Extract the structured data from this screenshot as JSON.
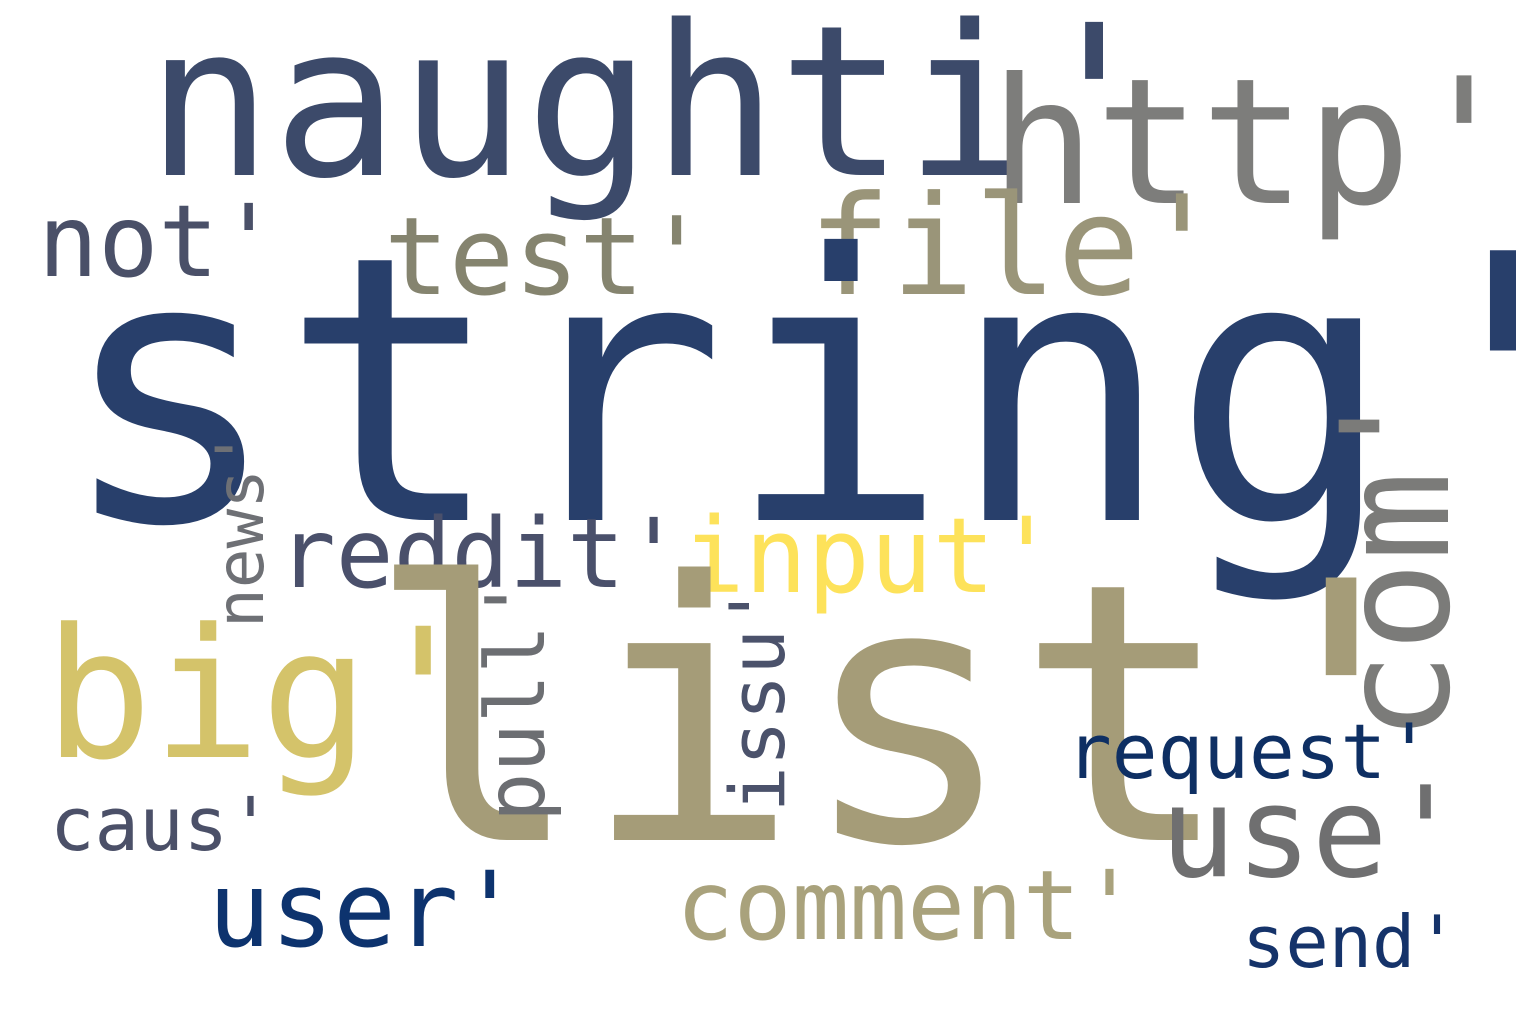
{
  "word_cloud": {
    "background": "#ffffff",
    "words": [
      {
        "key": "string",
        "text": "string'",
        "color": "#283f6b",
        "orientation": "horizontal"
      },
      {
        "key": "list",
        "text": "list'",
        "color": "#a59c78",
        "orientation": "horizontal"
      },
      {
        "key": "naughti",
        "text": "naughti'",
        "color": "#3c4a6a",
        "orientation": "horizontal"
      },
      {
        "key": "http",
        "text": "http'",
        "color": "#7d7d7b",
        "orientation": "horizontal"
      },
      {
        "key": "file",
        "text": "file'",
        "color": "#9a9579",
        "orientation": "horizontal"
      },
      {
        "key": "test",
        "text": "test'",
        "color": "#85846f",
        "orientation": "horizontal"
      },
      {
        "key": "not",
        "text": "not'",
        "color": "#4a5068",
        "orientation": "horizontal"
      },
      {
        "key": "com",
        "text": "com'",
        "color": "#7b7b79",
        "orientation": "vertical"
      },
      {
        "key": "big",
        "text": "big'",
        "color": "#d4c36a",
        "orientation": "horizontal"
      },
      {
        "key": "reddit",
        "text": "reddit'",
        "color": "#4a506b",
        "orientation": "horizontal"
      },
      {
        "key": "input",
        "text": "input'",
        "color": "#fde25a",
        "orientation": "horizontal"
      },
      {
        "key": "news",
        "text": "news'",
        "color": "#6e7075",
        "orientation": "vertical"
      },
      {
        "key": "pull",
        "text": "pull'",
        "color": "#6c6e72",
        "orientation": "vertical"
      },
      {
        "key": "issu",
        "text": "issu'",
        "color": "#4b526b",
        "orientation": "vertical"
      },
      {
        "key": "use",
        "text": "use'",
        "color": "#6f6f70",
        "orientation": "horizontal"
      },
      {
        "key": "request",
        "text": "request'",
        "color": "#0e2f63",
        "orientation": "horizontal"
      },
      {
        "key": "caus",
        "text": "caus'",
        "color": "#4b5068",
        "orientation": "horizontal"
      },
      {
        "key": "user",
        "text": "user'",
        "color": "#0d336e",
        "orientation": "horizontal"
      },
      {
        "key": "comment",
        "text": "comment'",
        "color": "#a9a27c",
        "orientation": "horizontal"
      },
      {
        "key": "send",
        "text": "send'",
        "color": "#15336a",
        "orientation": "horizontal"
      }
    ]
  }
}
